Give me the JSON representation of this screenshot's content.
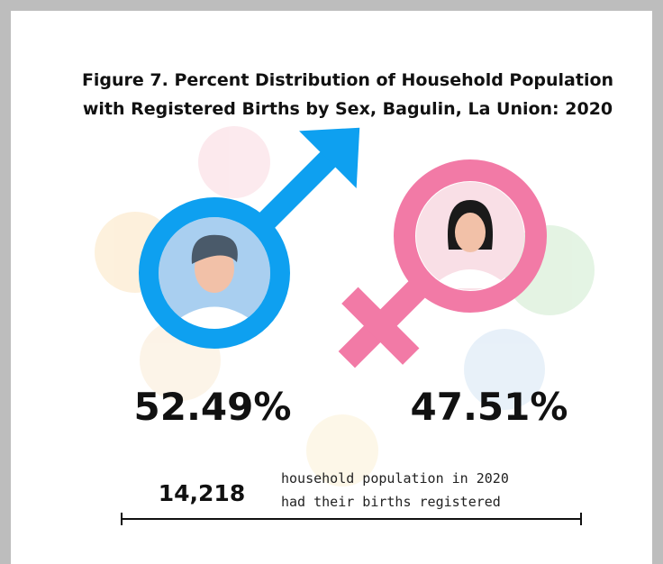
{
  "chart_data": {
    "type": "sex-symbols",
    "title": [
      "Figure 7. Percent Distribution of Household Population",
      "with Registered Births by Sex, Bagulin, La Union: 2020"
    ],
    "values": [
      52.49,
      47.51
    ],
    "value_labels": [
      "52.49%",
      "47.51%"
    ],
    "colors": [
      "#0ea0f0",
      "#f27aa6"
    ],
    "total": {
      "value": 14218,
      "label": "14,218"
    },
    "annotations": [
      "household population in 2020",
      "had their births registered"
    ]
  }
}
